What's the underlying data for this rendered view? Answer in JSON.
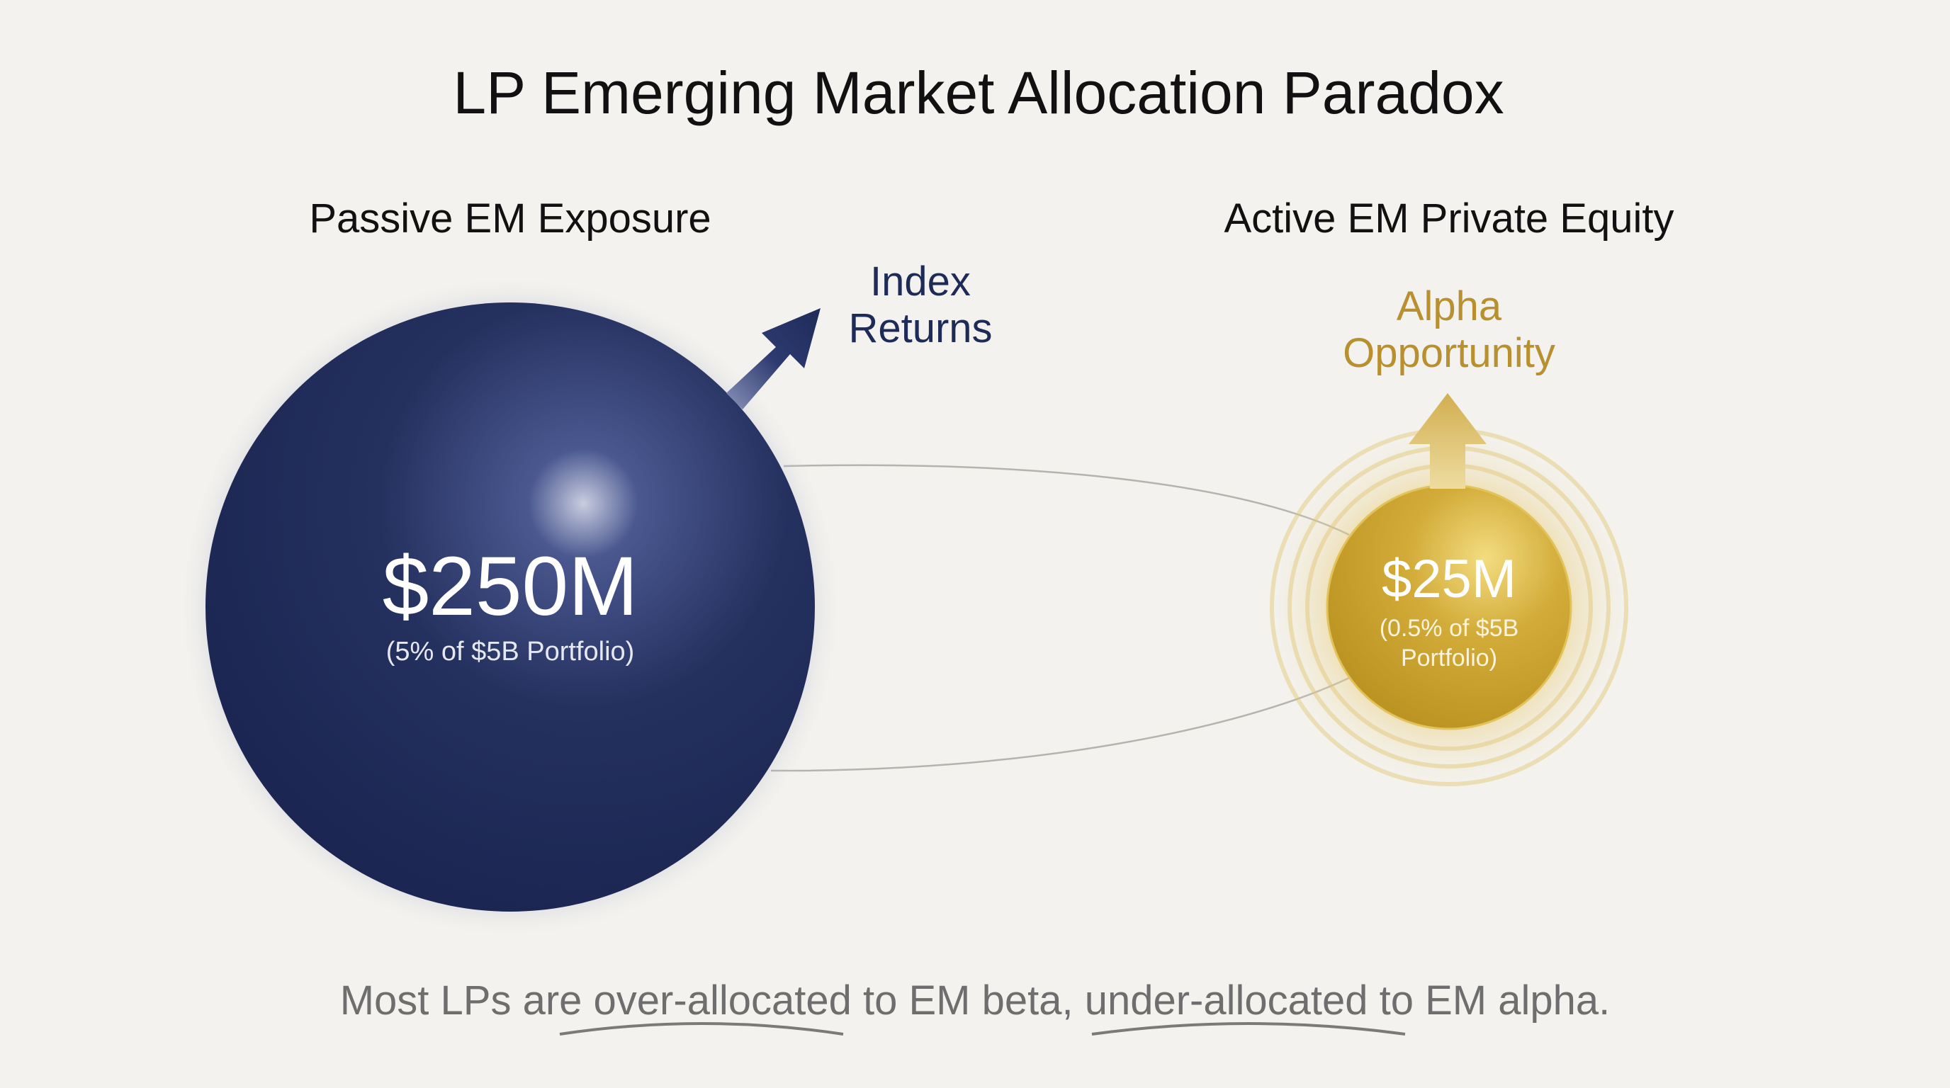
{
  "title": "LP Emerging Market Allocation Paradox",
  "passive": {
    "heading": "Passive EM Exposure",
    "amount": "$250M",
    "detail": "(5% of $5B Portfolio)",
    "arrow_label_line1": "Index",
    "arrow_label_line2": "Returns",
    "color": "#1f2b57",
    "icon": "arrow-up-right-icon"
  },
  "active": {
    "heading": "Active EM Private Equity",
    "amount": "$25M",
    "detail_line1": "(0.5% of $5B",
    "detail_line2": "Portfolio)",
    "arrow_label_line1": "Alpha",
    "arrow_label_line2": "Opportunity",
    "color": "#c9a232",
    "icon": "arrow-up-icon"
  },
  "footer": {
    "part1": "Most LPs are ",
    "emph1": "over-allocated",
    "part2": " to EM beta, ",
    "emph2": "under-allocated",
    "part3": " to EM alpha."
  }
}
